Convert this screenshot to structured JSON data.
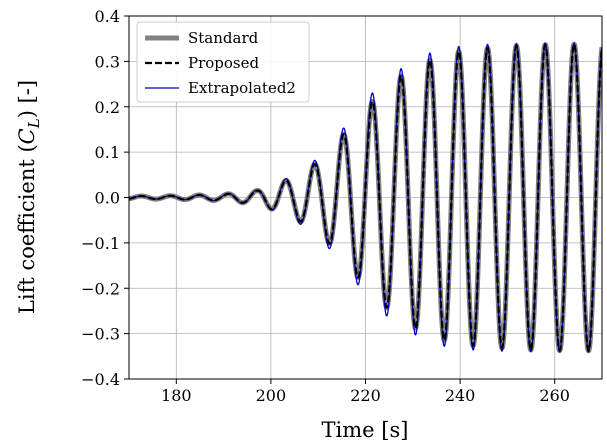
{
  "chart_data": {
    "type": "line",
    "xlabel": "Time [s]",
    "ylabel_prefix": "Lift coefficient (",
    "ylabel_symbol": "C",
    "ylabel_subscript": "L",
    "ylabel_suffix": ") [-]",
    "xlim": [
      170,
      270
    ],
    "ylim": [
      -0.4,
      0.4
    ],
    "xticks": [
      180,
      200,
      220,
      240,
      260
    ],
    "xtick_labels": [
      "180",
      "200",
      "220",
      "240",
      "260"
    ],
    "yticks": [
      -0.4,
      -0.3,
      -0.2,
      -0.1,
      0.0,
      0.1,
      0.2,
      0.3,
      0.4
    ],
    "ytick_labels": [
      "−0.4",
      "−0.3",
      "−0.2",
      "−0.1",
      "0.0",
      "0.1",
      "0.2",
      "0.3",
      "0.4"
    ],
    "grid": true,
    "legend_position": "top-left",
    "oscillation_period_s": 6.1,
    "series": [
      {
        "name": "Standard",
        "color": "#808080",
        "style": "solid-thick",
        "x": [
          170,
          180,
          190,
          197,
          200,
          205,
          211,
          217,
          223,
          229,
          235,
          241,
          247,
          253,
          259,
          265,
          270
        ],
        "amplitude": [
          0.003,
          0.004,
          0.007,
          0.015,
          0.025,
          0.045,
          0.085,
          0.16,
          0.23,
          0.28,
          0.31,
          0.325,
          0.33,
          0.335,
          0.337,
          0.338,
          0.338
        ]
      },
      {
        "name": "Proposed",
        "color": "#000000",
        "style": "dashed",
        "x": [
          170,
          180,
          190,
          197,
          200,
          205,
          211,
          217,
          223,
          229,
          235,
          241,
          247,
          253,
          259,
          265,
          270
        ],
        "amplitude": [
          0.003,
          0.004,
          0.007,
          0.015,
          0.025,
          0.045,
          0.085,
          0.16,
          0.23,
          0.28,
          0.31,
          0.325,
          0.33,
          0.335,
          0.337,
          0.338,
          0.338
        ]
      },
      {
        "name": "Extrapolated2",
        "color": "#0000cc",
        "style": "solid-thin",
        "x": [
          170,
          180,
          190,
          197,
          200,
          205,
          211,
          217,
          223,
          229,
          235,
          241,
          247,
          253,
          259,
          265,
          270
        ],
        "amplitude": [
          0.003,
          0.004,
          0.008,
          0.016,
          0.027,
          0.05,
          0.095,
          0.175,
          0.25,
          0.295,
          0.325,
          0.335,
          0.338,
          0.34,
          0.34,
          0.34,
          0.34
        ]
      }
    ]
  }
}
